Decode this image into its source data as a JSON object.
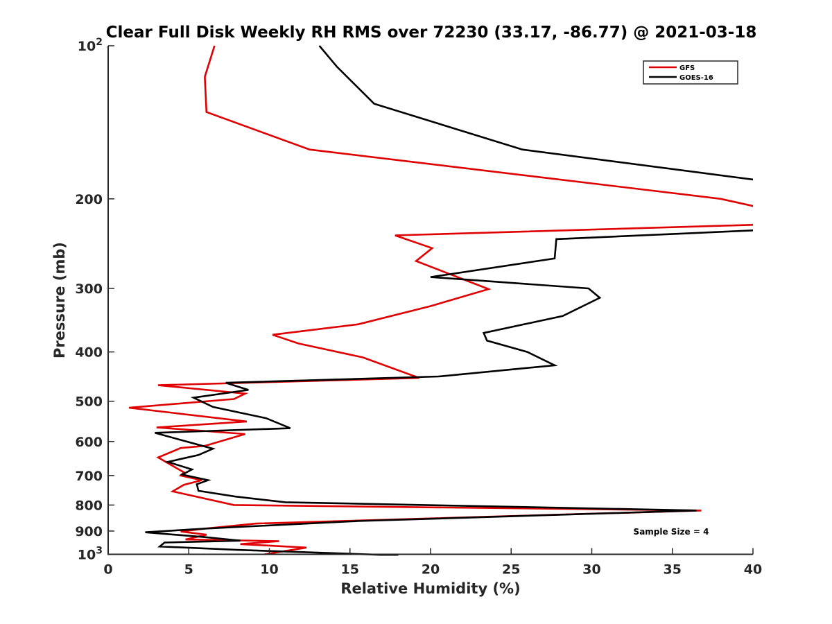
{
  "chart_data": {
    "type": "line",
    "title": "Clear Full Disk Weekly RH RMS over 72230 (33.17, -86.77) @ 2021-03-18",
    "xlabel": "Relative Humidity (%)",
    "ylabel": "Pressure (mb)",
    "xlim": [
      0,
      40
    ],
    "ylim": [
      100,
      1000
    ],
    "yscale": "log",
    "y_reversed": true,
    "grid": false,
    "legend_position": "top-right",
    "x_ticks": [
      "0",
      "5",
      "10",
      "15",
      "20",
      "25",
      "30",
      "35",
      "40"
    ],
    "y_ticks": [
      {
        "value": 100,
        "label": "10",
        "sup": "2"
      },
      {
        "value": 200,
        "label": "200",
        "sup": ""
      },
      {
        "value": 300,
        "label": "300",
        "sup": ""
      },
      {
        "value": 400,
        "label": "400",
        "sup": ""
      },
      {
        "value": 500,
        "label": "500",
        "sup": ""
      },
      {
        "value": 600,
        "label": "600",
        "sup": ""
      },
      {
        "value": 700,
        "label": "700",
        "sup": ""
      },
      {
        "value": 800,
        "label": "800",
        "sup": ""
      },
      {
        "value": 900,
        "label": "900",
        "sup": ""
      },
      {
        "value": 1000,
        "label": "10",
        "sup": "3"
      }
    ],
    "annotation": "Sample Size = 4",
    "series": [
      {
        "name": "GFS",
        "color": "#e00000",
        "x": [
          6.6,
          6.0,
          6.0,
          6.1,
          12.5,
          38.0,
          41.0,
          40.0,
          17.8,
          20.1,
          19.1,
          23.6,
          20.0,
          15.5,
          10.2,
          11.8,
          15.8,
          19.3,
          3.1,
          8.5,
          7.8,
          1.3,
          8.6,
          3.0,
          8.5,
          6.0,
          4.5,
          3.1,
          4.7,
          4.5,
          5.8,
          4.7,
          4.0,
          7.8,
          36.8,
          9.2,
          6.0,
          4.5,
          6.1,
          4.8,
          10.6,
          8.2,
          12.3,
          9.7
        ],
        "y": [
          100,
          115,
          116,
          135,
          160,
          200,
          210,
          225,
          236,
          250,
          265,
          301,
          325,
          353,
          370,
          385,
          410,
          450,
          465,
          483,
          495,
          515,
          548,
          563,
          580,
          612,
          618,
          645,
          690,
          700,
          715,
          730,
          752,
          800,
          820,
          870,
          890,
          902,
          915,
          935,
          942,
          955,
          970,
          1000
        ]
      },
      {
        "name": "GOES-16",
        "color": "#000000",
        "x": [
          13.1,
          14.2,
          16.5,
          25.7,
          41.0,
          41.0,
          27.8,
          27.7,
          20.0,
          29.8,
          30.5,
          28.2,
          23.3,
          23.5,
          26.0,
          27.7,
          20.5,
          7.3,
          8.7,
          5.3,
          6.5,
          9.8,
          11.3,
          2.9,
          6.5,
          5.6,
          3.7,
          5.2,
          4.6,
          6.2,
          5.5,
          5.6,
          7.9,
          11.0,
          36.5,
          15.5,
          6.0,
          2.3,
          6.0,
          8.2,
          3.5,
          3.2,
          8.0,
          18.0
        ],
        "y": [
          100,
          110,
          130,
          160,
          185,
          230,
          240,
          262,
          285,
          300,
          313,
          340,
          367,
          380,
          400,
          425,
          447,
          460,
          475,
          492,
          513,
          540,
          565,
          577,
          620,
          638,
          658,
          681,
          697,
          715,
          728,
          750,
          770,
          790,
          820,
          860,
          890,
          905,
          925,
          940,
          948,
          965,
          980,
          1005
        ]
      }
    ]
  }
}
